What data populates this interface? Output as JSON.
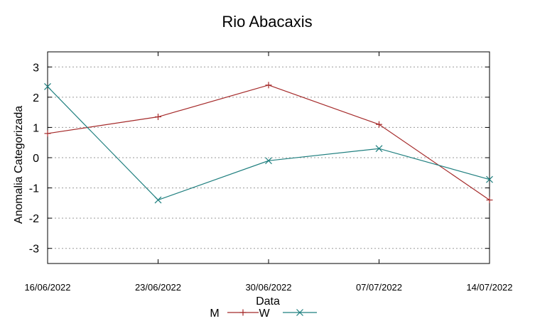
{
  "chart_data": {
    "type": "line",
    "title": "Rio Abacaxis",
    "xlabel": "Data",
    "ylabel": "Anomalia Categorizada",
    "categories": [
      "16/06/2022",
      "23/06/2022",
      "30/06/2022",
      "07/07/2022",
      "14/07/2022"
    ],
    "ylim": [
      -3.5,
      3.5
    ],
    "yticks": [
      "3",
      "2",
      "1",
      "0",
      "-1",
      "-2",
      "-3"
    ],
    "grid": true,
    "legend_position": "bottom",
    "series": [
      {
        "name": "M",
        "values": [
          0.8,
          1.35,
          2.4,
          1.1,
          -1.4
        ],
        "color": "#a52a2a",
        "marker": "plus"
      },
      {
        "name": "W",
        "values": [
          2.35,
          -1.4,
          -0.1,
          0.3,
          -0.72
        ],
        "color": "#1f7f7f",
        "marker": "cross"
      }
    ]
  }
}
